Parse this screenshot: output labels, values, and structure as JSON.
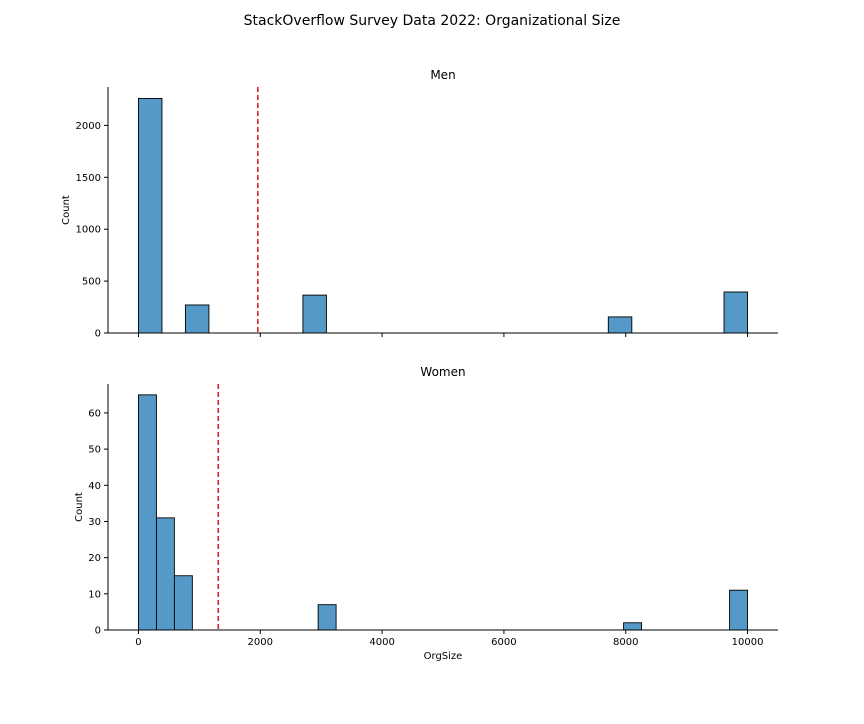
{
  "chart_data": {
    "type": "bar",
    "suptitle": "StackOverflow Survey Data 2022: Organizational Size",
    "xlabel": "OrgSize",
    "xlim": [
      -500,
      10500
    ],
    "xticks": [
      0,
      2000,
      4000,
      6000,
      8000,
      10000
    ],
    "bin_width": 385.7,
    "bar_color": "#5499c7",
    "bar_edge_color": "#000000",
    "mean_line_color": "#d62728",
    "panels": [
      {
        "title": "Men",
        "ylabel": "Count",
        "ylim": [
          0,
          2370
        ],
        "yticks": [
          0,
          500,
          1000,
          1500,
          2000
        ],
        "mean_line_x": 1960,
        "bins": [
          {
            "x0": 0,
            "x1": 386,
            "count": 2260
          },
          {
            "x0": 771,
            "x1": 1157,
            "count": 270
          },
          {
            "x0": 2700,
            "x1": 3086,
            "count": 365
          },
          {
            "x0": 7714,
            "x1": 8100,
            "count": 155
          },
          {
            "x0": 9614,
            "x1": 10000,
            "count": 395
          }
        ]
      },
      {
        "title": "Women",
        "ylabel": "Count",
        "ylim": [
          0,
          68
        ],
        "yticks": [
          0,
          10,
          20,
          30,
          40,
          50,
          60
        ],
        "mean_line_x": 1310,
        "bins": [
          {
            "x0": 0,
            "x1": 295,
            "count": 65
          },
          {
            "x0": 295,
            "x1": 590,
            "count": 31
          },
          {
            "x0": 590,
            "x1": 885,
            "count": 15
          },
          {
            "x0": 2950,
            "x1": 3245,
            "count": 7
          },
          {
            "x0": 7965,
            "x1": 8260,
            "count": 2
          },
          {
            "x0": 9705,
            "x1": 10000,
            "count": 11
          }
        ]
      }
    ]
  }
}
